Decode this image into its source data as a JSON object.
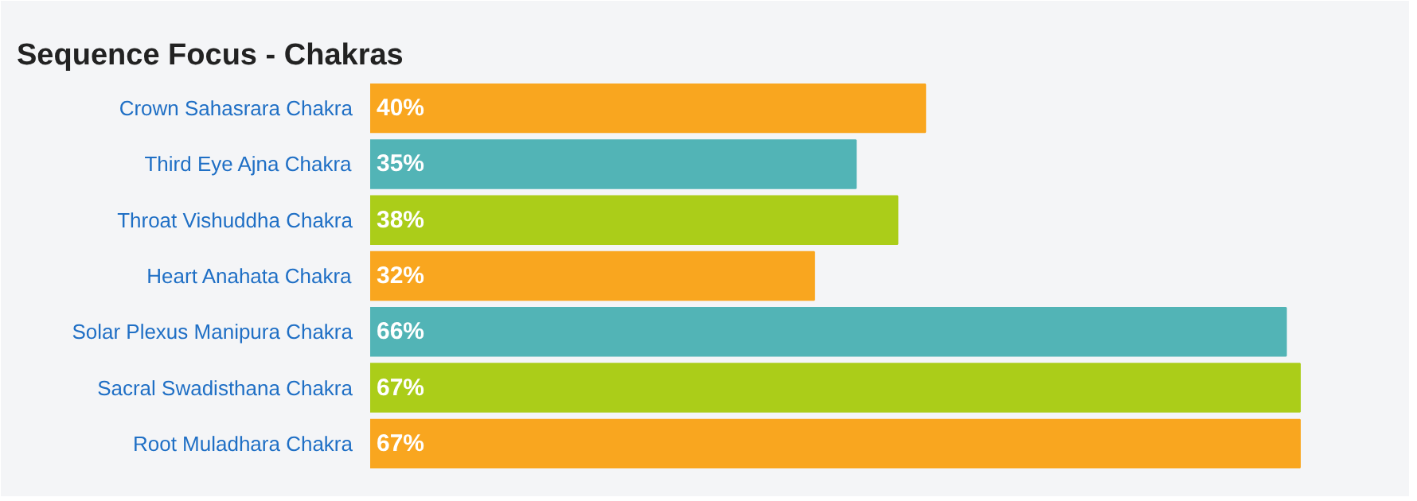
{
  "chart_data": {
    "type": "bar",
    "title": "Sequence Focus - Chakras",
    "orientation": "horizontal",
    "categories": [
      "Crown Sahasrara Chakra",
      "Third Eye Ajna Chakra",
      "Throat Vishuddha Chakra",
      "Heart Anahata Chakra",
      "Solar Plexus Manipura Chakra",
      "Sacral Swadisthana Chakra",
      "Root Muladhara Chakra"
    ],
    "values": [
      40,
      35,
      38,
      32,
      66,
      67,
      67
    ],
    "colors": [
      "#f9a61f",
      "#52b4b6",
      "#abcd19",
      "#f9a61f",
      "#52b4b6",
      "#abcd19",
      "#f9a61f"
    ],
    "value_labels": [
      "40%",
      "35%",
      "38%",
      "32%",
      "66%",
      "67%",
      "67%"
    ],
    "xlim": [
      0,
      74
    ]
  }
}
